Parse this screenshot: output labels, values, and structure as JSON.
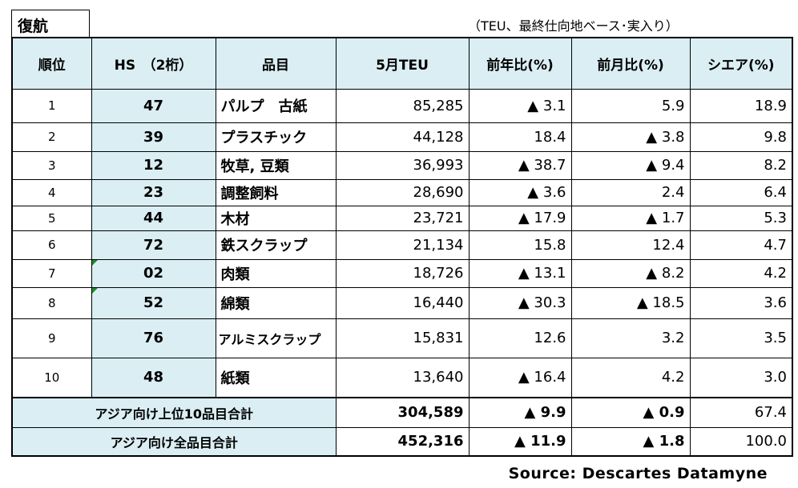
{
  "title": "復航",
  "unit_note": "（TEU、最終仕向地ベース･実入り）",
  "headers": [
    "順位",
    "HS　（2桁）",
    "品目",
    "5月TEU",
    "前年比(%)",
    "前月比(%)",
    "シエア(%)"
  ],
  "rows": [
    {
      "rank": "1",
      "hs": "47",
      "item": "パルプ　古紙",
      "teu": "85,285",
      "yoy": "▲ 3.1",
      "mom": "5.9",
      "share": "18.9"
    },
    {
      "rank": "2",
      "hs": "39",
      "item": "プラスチック",
      "teu": "44,128",
      "yoy": "18.4",
      "mom": "▲ 3.8",
      "share": "9.8"
    },
    {
      "rank": "3",
      "hs": "12",
      "item": "牧草, 豆類",
      "teu": "36,993",
      "yoy": "▲ 38.7",
      "mom": "▲ 9.4",
      "share": "8.2"
    },
    {
      "rank": "4",
      "hs": "23",
      "item": "調整飼料",
      "teu": "28,690",
      "yoy": "▲ 3.6",
      "mom": "2.4",
      "share": "6.4"
    },
    {
      "rank": "5",
      "hs": "44",
      "item": "木材",
      "teu": "23,721",
      "yoy": "▲ 17.9",
      "mom": "▲ 1.7",
      "share": "5.3"
    },
    {
      "rank": "6",
      "hs": "72",
      "item": "鉄スクラップ",
      "teu": "21,134",
      "yoy": "15.8",
      "mom": "12.4",
      "share": "4.7"
    },
    {
      "rank": "7",
      "hs": "02",
      "item": "肉類",
      "teu": "18,726",
      "yoy": "▲ 13.1",
      "mom": "▲ 8.2",
      "share": "4.2"
    },
    {
      "rank": "8",
      "hs": "52",
      "item": "綿類",
      "teu": "16,440",
      "yoy": "▲ 30.3",
      "mom": "▲ 18.5",
      "share": "3.6"
    },
    {
      "rank": "9",
      "hs": "76",
      "item": "アルミスクラップ",
      "teu": "15,831",
      "yoy": "12.6",
      "mom": "3.2",
      "share": "3.5"
    },
    {
      "rank": "10",
      "hs": "48",
      "item": "紙類",
      "teu": "13,640",
      "yoy": "▲ 16.4",
      "mom": "4.2",
      "share": "3.0"
    }
  ],
  "totals": [
    {
      "label": "アジア向け上位10品目合計",
      "teu": "304,589",
      "yoy": "▲ 9.9",
      "mom": "▲ 0.9",
      "share": "67.4"
    },
    {
      "label": "アジア向け全品目合計",
      "teu": "452,316",
      "yoy": "▲ 11.9",
      "mom": "▲ 1.8",
      "share": "100.0"
    }
  ],
  "source": "Source: Descartes Datamyne",
  "colors": {
    "header_bg": "#daeef3",
    "marker": "#1f8b2e"
  }
}
